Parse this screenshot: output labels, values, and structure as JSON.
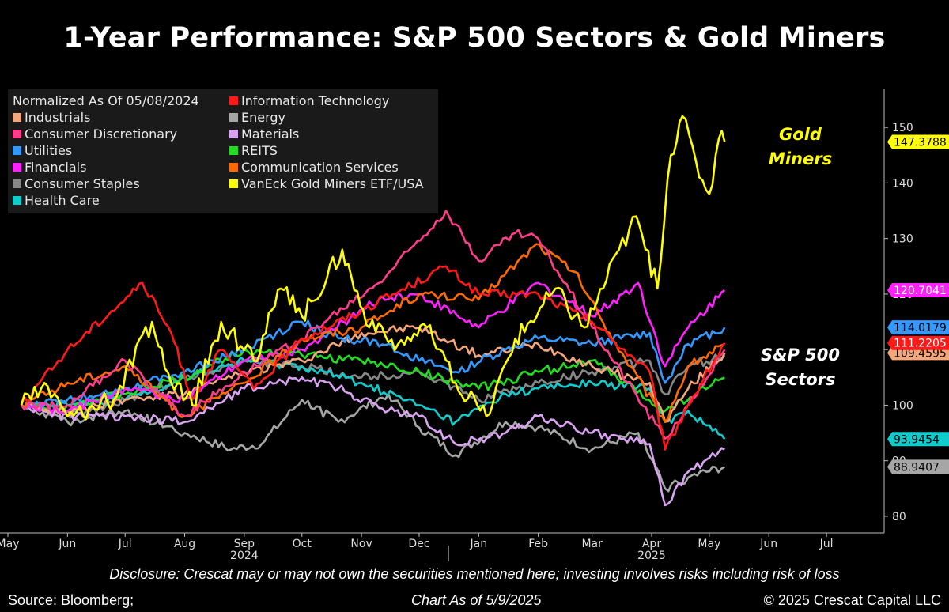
{
  "title": "1-Year Performance: S&P 500 Sectors & Gold Miners",
  "legend": {
    "header": "Normalized As Of 05/08/2024",
    "items": [
      {
        "label": "Information Technology",
        "color": "#ff1a1a"
      },
      {
        "label": "Industrials",
        "color": "#f5a67a"
      },
      {
        "label": "Energy",
        "color": "#a6a6a6"
      },
      {
        "label": "Consumer Discretionary",
        "color": "#ff3d8b"
      },
      {
        "label": "Materials",
        "color": "#d9a3f2"
      },
      {
        "label": "Utilities",
        "color": "#3399ff"
      },
      {
        "label": "REITS",
        "color": "#22dd22"
      },
      {
        "label": "Financials",
        "color": "#ff22ff"
      },
      {
        "label": "Communication Services",
        "color": "#ff6a00"
      },
      {
        "label": "Consumer Staples",
        "color": "#888888"
      },
      {
        "label": "VanEck Gold Miners ETF/USA",
        "color": "#ffff00"
      },
      {
        "label": "Health Care",
        "color": "#11cccc"
      }
    ]
  },
  "annotations": {
    "gold_line1": "Gold",
    "gold_line2": "Miners",
    "sp_line1": "S&P 500",
    "sp_line2": "Sectors"
  },
  "footer": {
    "disclosure": "Disclosure: Crescat may or may not own the securities mentioned here; investing involves risks including risk of loss",
    "source": "Source: Bloomberg;",
    "as_of": "Chart As of 5/9/2025",
    "copyright": "© 2025 Crescat Capital LLC"
  },
  "chart_data": {
    "type": "line",
    "title": "1-Year Performance: S&P 500 Sectors & Gold Miners",
    "subtitle": "Normalized As Of 05/08/2024",
    "x_start": "2024-05-01",
    "x_end": "2025-07-31",
    "x_tick_labels": [
      "May",
      "Jun",
      "Jul",
      "Aug",
      "Sep",
      "Oct",
      "Nov",
      "Dec",
      "Jan",
      "Feb",
      "Mar",
      "Apr",
      "May",
      "Jun",
      "Jul"
    ],
    "x_tick_dates": [
      "2024-05-01",
      "2024-06-01",
      "2024-07-01",
      "2024-08-01",
      "2024-09-01",
      "2024-10-01",
      "2024-11-01",
      "2024-12-01",
      "2025-01-01",
      "2025-02-01",
      "2025-03-01",
      "2025-04-01",
      "2025-05-01",
      "2025-06-01",
      "2025-07-01"
    ],
    "year_labels": [
      {
        "label": "2024",
        "date": "2024-09-01"
      },
      {
        "label": "2025",
        "date": "2025-04-01"
      }
    ],
    "year_divider_date": "2025-01-01",
    "ylim": [
      77,
      157
    ],
    "y_ticks": [
      80,
      90,
      100,
      110,
      120,
      130,
      140,
      150
    ],
    "y_tick_labels": [
      "80",
      "90",
      "100",
      "110",
      "120",
      "130",
      "140",
      "150"
    ],
    "y_axis_side": "right",
    "legend_position": "top-left",
    "series": [
      {
        "name": "Consumer Staples",
        "color": "#888888",
        "points": [
          [
            "2024-05-08",
            100
          ],
          [
            "2024-06-01",
            98
          ],
          [
            "2024-07-01",
            101
          ],
          [
            "2024-08-01",
            105
          ],
          [
            "2024-09-01",
            108
          ],
          [
            "2024-10-01",
            107
          ],
          [
            "2024-11-01",
            105
          ],
          [
            "2024-12-01",
            106
          ],
          [
            "2025-01-01",
            101
          ],
          [
            "2025-02-01",
            104
          ],
          [
            "2025-03-01",
            106
          ],
          [
            "2025-03-31",
            108
          ],
          [
            "2025-04-08",
            102
          ],
          [
            "2025-04-20",
            107
          ],
          [
            "2025-05-09",
            109
          ]
        ],
        "last_value_label": ""
      },
      {
        "name": "Energy",
        "color": "#a6a6a6",
        "points": [
          [
            "2024-05-08",
            100
          ],
          [
            "2024-06-01",
            97
          ],
          [
            "2024-07-01",
            99
          ],
          [
            "2024-08-01",
            95
          ],
          [
            "2024-08-25",
            92
          ],
          [
            "2024-09-10",
            93
          ],
          [
            "2024-10-01",
            101
          ],
          [
            "2024-10-20",
            97
          ],
          [
            "2024-11-15",
            102
          ],
          [
            "2024-12-01",
            96
          ],
          [
            "2024-12-20",
            91
          ],
          [
            "2025-01-15",
            97
          ],
          [
            "2025-02-01",
            96
          ],
          [
            "2025-03-01",
            92
          ],
          [
            "2025-03-25",
            95
          ],
          [
            "2025-04-08",
            85
          ],
          [
            "2025-04-20",
            87
          ],
          [
            "2025-05-09",
            88.9
          ]
        ],
        "last_value_label": "88.9407"
      },
      {
        "name": "Materials",
        "color": "#d9a3f2",
        "points": [
          [
            "2024-05-08",
            100
          ],
          [
            "2024-06-01",
            98
          ],
          [
            "2024-07-01",
            98
          ],
          [
            "2024-08-01",
            97
          ],
          [
            "2024-09-01",
            103
          ],
          [
            "2024-10-01",
            105
          ],
          [
            "2024-10-20",
            103
          ],
          [
            "2024-11-15",
            99
          ],
          [
            "2024-12-01",
            98
          ],
          [
            "2024-12-20",
            93
          ],
          [
            "2025-01-15",
            95
          ],
          [
            "2025-02-01",
            98
          ],
          [
            "2025-03-01",
            95
          ],
          [
            "2025-03-31",
            93
          ],
          [
            "2025-04-08",
            82
          ],
          [
            "2025-04-20",
            88
          ],
          [
            "2025-05-09",
            92
          ]
        ],
        "last_value_label": ""
      },
      {
        "name": "Health Care",
        "color": "#11cccc",
        "points": [
          [
            "2024-05-08",
            100
          ],
          [
            "2024-06-01",
            100
          ],
          [
            "2024-07-01",
            101
          ],
          [
            "2024-08-01",
            105
          ],
          [
            "2024-09-01",
            108
          ],
          [
            "2024-10-01",
            107
          ],
          [
            "2024-11-01",
            104
          ],
          [
            "2024-12-01",
            100
          ],
          [
            "2024-12-20",
            97
          ],
          [
            "2025-01-15",
            102
          ],
          [
            "2025-02-01",
            103
          ],
          [
            "2025-03-01",
            104
          ],
          [
            "2025-03-31",
            103
          ],
          [
            "2025-04-08",
            97
          ],
          [
            "2025-04-20",
            99
          ],
          [
            "2025-05-09",
            93.9
          ]
        ],
        "last_value_label": "93.9454"
      },
      {
        "name": "REITS",
        "color": "#22dd22",
        "points": [
          [
            "2024-05-08",
            100
          ],
          [
            "2024-06-01",
            100
          ],
          [
            "2024-07-01",
            102
          ],
          [
            "2024-08-01",
            105
          ],
          [
            "2024-09-01",
            110
          ],
          [
            "2024-10-01",
            109
          ],
          [
            "2024-11-01",
            108
          ],
          [
            "2024-12-01",
            106
          ],
          [
            "2025-01-01",
            103
          ],
          [
            "2025-02-01",
            106
          ],
          [
            "2025-03-01",
            108
          ],
          [
            "2025-04-08",
            99
          ],
          [
            "2025-05-09",
            105
          ]
        ],
        "last_value_label": ""
      },
      {
        "name": "Industrials",
        "color": "#f5a67a",
        "points": [
          [
            "2024-05-08",
            100
          ],
          [
            "2024-06-01",
            99
          ],
          [
            "2024-07-01",
            101
          ],
          [
            "2024-08-01",
            102
          ],
          [
            "2024-09-01",
            106
          ],
          [
            "2024-10-01",
            108
          ],
          [
            "2024-11-01",
            113
          ],
          [
            "2024-12-01",
            114
          ],
          [
            "2025-01-01",
            109
          ],
          [
            "2025-02-01",
            111
          ],
          [
            "2025-03-01",
            107
          ],
          [
            "2025-03-31",
            104
          ],
          [
            "2025-04-08",
            97
          ],
          [
            "2025-04-20",
            103
          ],
          [
            "2025-05-09",
            109.4
          ]
        ],
        "last_value_label": "109.4595"
      },
      {
        "name": "Utilities",
        "color": "#3399ff",
        "points": [
          [
            "2024-05-08",
            100
          ],
          [
            "2024-06-01",
            101
          ],
          [
            "2024-07-01",
            103
          ],
          [
            "2024-08-01",
            106
          ],
          [
            "2024-09-01",
            110
          ],
          [
            "2024-10-01",
            115
          ],
          [
            "2024-10-20",
            112
          ],
          [
            "2024-11-15",
            111
          ],
          [
            "2024-12-01",
            108
          ],
          [
            "2024-12-20",
            106
          ],
          [
            "2025-01-15",
            110
          ],
          [
            "2025-02-01",
            112
          ],
          [
            "2025-03-01",
            111
          ],
          [
            "2025-03-31",
            113
          ],
          [
            "2025-04-08",
            104
          ],
          [
            "2025-04-20",
            111
          ],
          [
            "2025-05-09",
            114
          ]
        ],
        "last_value_label": "114.0179"
      },
      {
        "name": "Financials",
        "color": "#ff22ff",
        "points": [
          [
            "2024-05-08",
            100
          ],
          [
            "2024-06-01",
            99
          ],
          [
            "2024-07-01",
            103
          ],
          [
            "2024-08-01",
            101
          ],
          [
            "2024-09-01",
            108
          ],
          [
            "2024-10-01",
            110
          ],
          [
            "2024-11-10",
            119
          ],
          [
            "2024-12-01",
            120
          ],
          [
            "2025-01-01",
            114
          ],
          [
            "2025-02-01",
            122
          ],
          [
            "2025-03-01",
            116
          ],
          [
            "2025-03-25",
            122
          ],
          [
            "2025-04-08",
            107
          ],
          [
            "2025-04-20",
            114
          ],
          [
            "2025-05-09",
            120.7
          ]
        ],
        "last_value_label": "120.7041"
      },
      {
        "name": "Communication Services",
        "color": "#ff6a00",
        "points": [
          [
            "2024-05-08",
            100
          ],
          [
            "2024-06-01",
            104
          ],
          [
            "2024-07-01",
            107
          ],
          [
            "2024-08-01",
            98
          ],
          [
            "2024-09-01",
            104
          ],
          [
            "2024-10-01",
            112
          ],
          [
            "2024-11-01",
            114
          ],
          [
            "2024-12-01",
            120
          ],
          [
            "2025-01-01",
            119
          ],
          [
            "2025-01-31",
            129
          ],
          [
            "2025-02-20",
            124
          ],
          [
            "2025-03-10",
            113
          ],
          [
            "2025-04-08",
            97
          ],
          [
            "2025-04-20",
            107
          ],
          [
            "2025-05-09",
            111
          ]
        ],
        "last_value_label": ""
      },
      {
        "name": "Consumer Discretionary",
        "color": "#ff3d8b",
        "points": [
          [
            "2024-05-08",
            100
          ],
          [
            "2024-06-01",
            100
          ],
          [
            "2024-07-01",
            108
          ],
          [
            "2024-08-01",
            98
          ],
          [
            "2024-09-01",
            106
          ],
          [
            "2024-10-01",
            112
          ],
          [
            "2024-11-10",
            122
          ],
          [
            "2024-12-15",
            135
          ],
          [
            "2025-01-01",
            126
          ],
          [
            "2025-01-20",
            131
          ],
          [
            "2025-02-01",
            130
          ],
          [
            "2025-03-01",
            114
          ],
          [
            "2025-04-08",
            94
          ],
          [
            "2025-04-20",
            100
          ],
          [
            "2025-05-09",
            110
          ]
        ],
        "last_value_label": ""
      },
      {
        "name": "Information Technology",
        "color": "#ff1a1a",
        "points": [
          [
            "2024-05-08",
            100
          ],
          [
            "2024-06-01",
            110
          ],
          [
            "2024-07-10",
            122
          ],
          [
            "2024-07-25",
            113
          ],
          [
            "2024-08-05",
            101
          ],
          [
            "2024-08-20",
            110
          ],
          [
            "2024-09-06",
            103
          ],
          [
            "2024-10-01",
            112
          ],
          [
            "2024-11-01",
            117
          ],
          [
            "2024-12-15",
            125
          ],
          [
            "2025-01-01",
            120
          ],
          [
            "2025-02-01",
            120
          ],
          [
            "2025-03-01",
            115
          ],
          [
            "2025-03-31",
            106
          ],
          [
            "2025-04-08",
            92
          ],
          [
            "2025-04-20",
            100
          ],
          [
            "2025-05-09",
            111.2
          ]
        ],
        "last_value_label": "111.2205"
      },
      {
        "name": "VanEck Gold Miners ETF/USA",
        "color": "#ffff00",
        "points": [
          [
            "2024-05-08",
            100
          ],
          [
            "2024-05-20",
            104
          ],
          [
            "2024-06-01",
            98
          ],
          [
            "2024-06-25",
            101
          ],
          [
            "2024-07-15",
            115
          ],
          [
            "2024-07-25",
            104
          ],
          [
            "2024-08-05",
            100
          ],
          [
            "2024-08-20",
            115
          ],
          [
            "2024-09-06",
            108
          ],
          [
            "2024-09-20",
            121
          ],
          [
            "2024-10-01",
            116
          ],
          [
            "2024-10-22",
            128
          ],
          [
            "2024-11-05",
            114
          ],
          [
            "2024-11-20",
            111
          ],
          [
            "2024-12-05",
            114
          ],
          [
            "2024-12-20",
            104
          ],
          [
            "2025-01-05",
            98
          ],
          [
            "2025-01-20",
            112
          ],
          [
            "2025-02-10",
            121
          ],
          [
            "2025-02-25",
            114
          ],
          [
            "2025-03-15",
            128
          ],
          [
            "2025-03-24",
            134
          ],
          [
            "2025-04-04",
            121
          ],
          [
            "2025-04-11",
            145
          ],
          [
            "2025-04-17",
            152
          ],
          [
            "2025-04-24",
            144
          ],
          [
            "2025-05-01",
            138
          ],
          [
            "2025-05-06",
            148
          ],
          [
            "2025-05-09",
            147.4
          ]
        ],
        "last_value_label": "147.3788"
      }
    ]
  }
}
